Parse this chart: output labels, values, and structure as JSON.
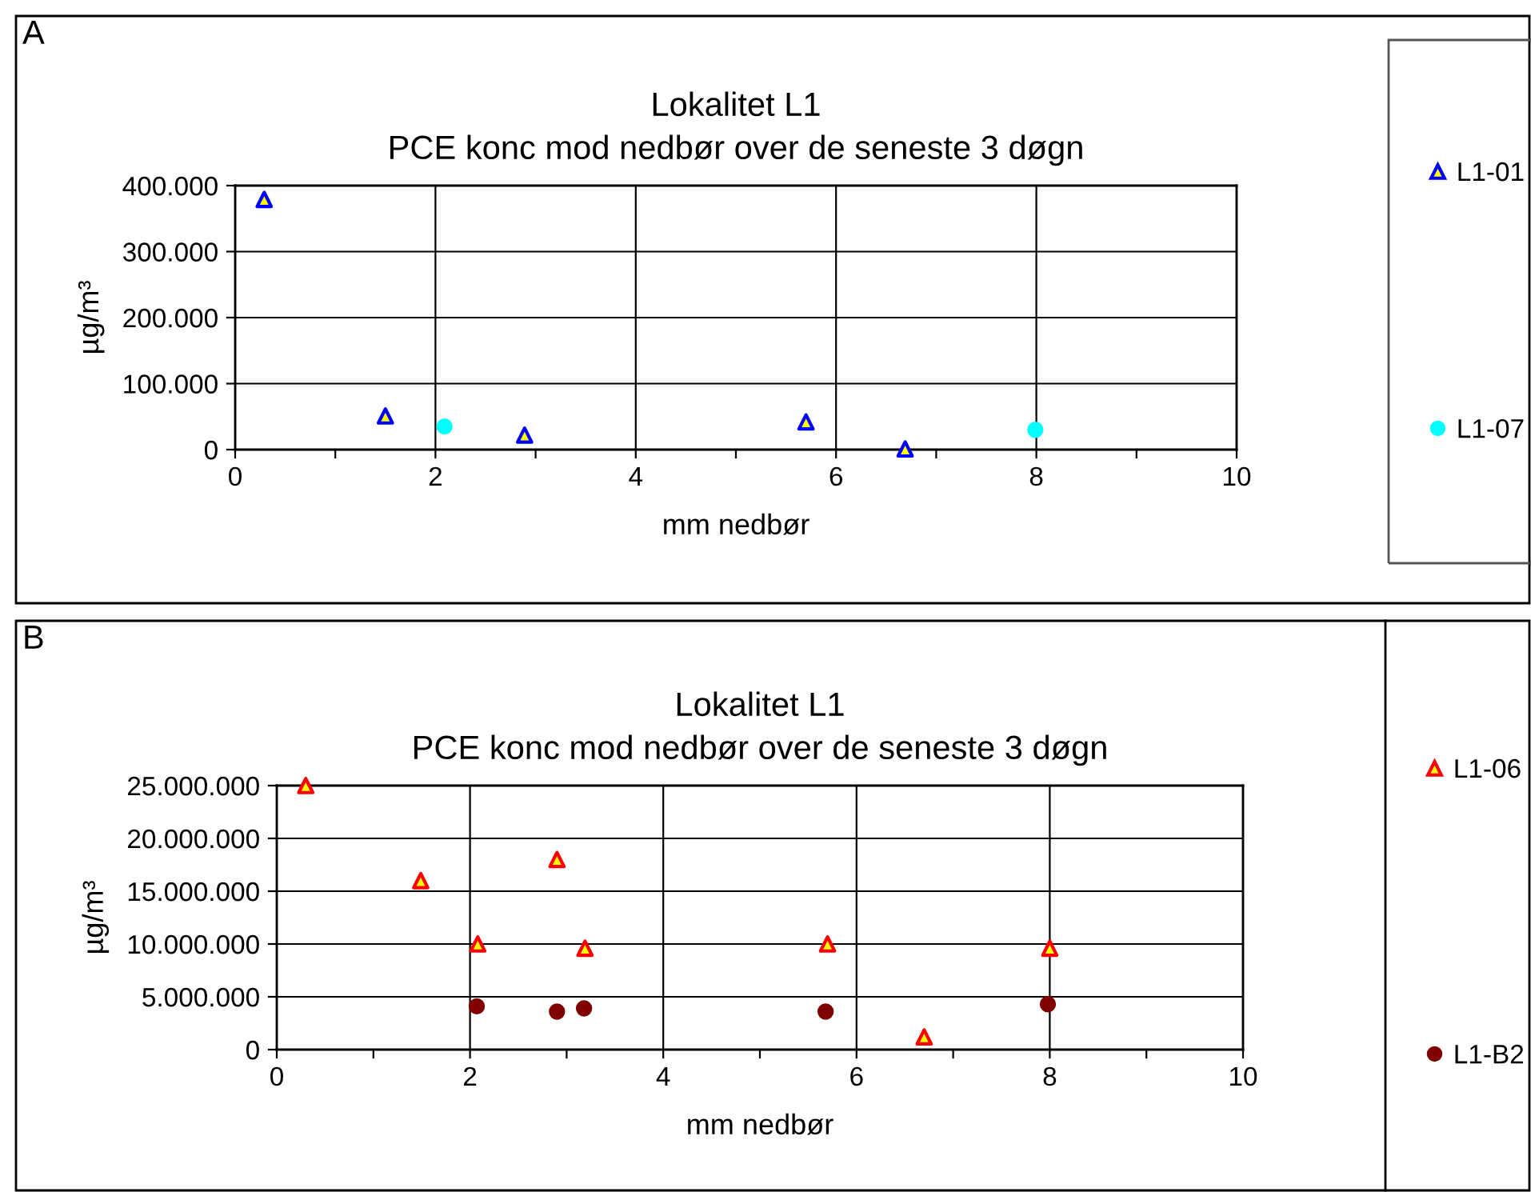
{
  "chart_data": [
    {
      "type": "scatter",
      "title": "Lokalitet L1",
      "subtitle": "PCE konc mod nedbør over de seneste 3 døgn",
      "xlabel": "mm nedbør",
      "ylabel": "µg/m³",
      "annotations": [
        "A"
      ],
      "series": [
        {
          "name": "L1-01",
          "color": "#0000ff",
          "marker": "triangle",
          "x": [
            0.29,
            1.5,
            2.89,
            5.7,
            6.69
          ],
          "values": [
            379000,
            51000,
            22000,
            42000,
            1000
          ]
        },
        {
          "name": "L1-07",
          "color": "#00ffff",
          "marker": "circle",
          "x": [
            2.09,
            7.99
          ],
          "values": [
            35000,
            30000
          ]
        }
      ],
      "xlim": [
        0,
        10
      ],
      "xticks": [
        0,
        {
          "value": 1,
          "label": null
        },
        2,
        {
          "value": 3,
          "label": null
        },
        4,
        {
          "value": 5,
          "label": null
        },
        6,
        {
          "value": 7,
          "label": null
        },
        8,
        {
          "value": 9,
          "label": null
        },
        10
      ],
      "ylim": [
        0,
        400000
      ],
      "yticks": [
        {
          "value": 0,
          "label": "0"
        },
        {
          "value": 100000,
          "label": "100.000"
        },
        {
          "value": 200000,
          "label": "200.000"
        },
        {
          "value": 300000,
          "label": "300.000"
        },
        {
          "value": 400000,
          "label": "400.000"
        }
      ],
      "grid": true,
      "legend": "right"
    },
    {
      "type": "scatter",
      "title": "Lokalitet L1",
      "subtitle": "PCE konc mod nedbør over de seneste 3 døgn",
      "xlabel": "mm nedbør",
      "ylabel": "µg/m³",
      "annotations": [
        "B"
      ],
      "series": [
        {
          "name": "L1-06",
          "color": "#ff0000",
          "marker": "triangle",
          "x": [
            0.3,
            1.49,
            2.08,
            2.9,
            3.19,
            5.7,
            6.7,
            8.0
          ],
          "values": [
            25000000,
            16000000,
            10000000,
            18000000,
            9600000,
            10000000,
            1200000,
            9600000
          ]
        },
        {
          "name": "L1-B2",
          "color": "#800000",
          "marker": "circle",
          "x": [
            2.07,
            2.9,
            3.18,
            5.68,
            7.98
          ],
          "values": [
            4100000,
            3600000,
            3900000,
            3600000,
            4300000
          ]
        }
      ],
      "xlim": [
        0,
        10
      ],
      "xticks": [
        0,
        {
          "value": 1,
          "label": null
        },
        2,
        {
          "value": 3,
          "label": null
        },
        4,
        {
          "value": 5,
          "label": null
        },
        6,
        {
          "value": 7,
          "label": null
        },
        8,
        {
          "value": 9,
          "label": null
        },
        10
      ],
      "ylim": [
        0,
        25000000
      ],
      "yticks": [
        {
          "value": 0,
          "label": "0"
        },
        {
          "value": 5000000,
          "label": "5.000.000"
        },
        {
          "value": 10000000,
          "label": "10.000.000"
        },
        {
          "value": 15000000,
          "label": "15.000.000"
        },
        {
          "value": 20000000,
          "label": "20.000.000"
        },
        {
          "value": 25000000,
          "label": "25.000.000"
        }
      ],
      "grid": true,
      "legend": "right"
    }
  ]
}
